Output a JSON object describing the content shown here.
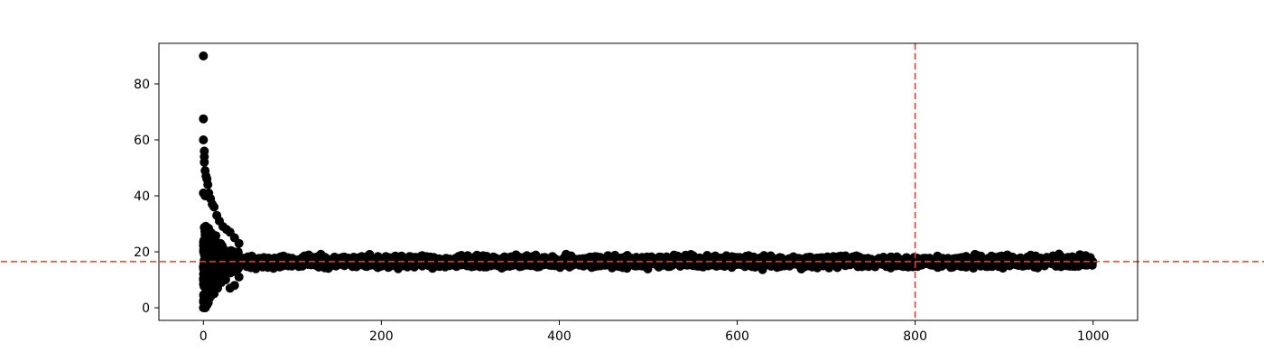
{
  "chart_data": {
    "type": "scatter",
    "title": "",
    "xlabel": "",
    "ylabel": "",
    "xlim": [
      -50,
      1050
    ],
    "ylim": [
      -4.5,
      94.5
    ],
    "xticks": [
      0,
      200,
      400,
      600,
      800,
      1000
    ],
    "yticks": [
      0,
      20,
      40,
      60,
      80
    ],
    "xtick_labels": [
      "0",
      "200",
      "400",
      "600",
      "800",
      "1000"
    ],
    "ytick_labels": [
      "0",
      "20",
      "40",
      "60",
      "80"
    ],
    "grid": false,
    "legend": "none",
    "marker_color": "#000000",
    "reference_line_color": "#e8412c",
    "reference_lines": [
      {
        "orientation": "horizontal",
        "value": 16.5,
        "style": "dashed"
      },
      {
        "orientation": "vertical",
        "value": 800,
        "style": "dashed"
      }
    ],
    "series": [
      {
        "x_range": [
          0,
          1000
        ],
        "description_points": [
          {
            "x": 0,
            "y": 90
          },
          {
            "x": 0,
            "y": 67.5
          },
          {
            "x": 0,
            "y": 60
          },
          {
            "x": 1,
            "y": 56
          },
          {
            "x": 1,
            "y": 54
          },
          {
            "x": 1,
            "y": 52
          },
          {
            "x": 2,
            "y": 49
          },
          {
            "x": 3,
            "y": 47
          },
          {
            "x": 4,
            "y": 46
          },
          {
            "x": 5,
            "y": 44
          },
          {
            "x": 0,
            "y": 41
          },
          {
            "x": 2,
            "y": 40
          },
          {
            "x": 6,
            "y": 41
          },
          {
            "x": 8,
            "y": 39
          },
          {
            "x": 10,
            "y": 37
          },
          {
            "x": 12,
            "y": 36
          },
          {
            "x": 15,
            "y": 33
          },
          {
            "x": 18,
            "y": 31
          },
          {
            "x": 22,
            "y": 29
          },
          {
            "x": 26,
            "y": 28
          },
          {
            "x": 30,
            "y": 27
          },
          {
            "x": 35,
            "y": 25
          },
          {
            "x": 40,
            "y": 23
          },
          {
            "x": 0,
            "y": 0
          },
          {
            "x": 2,
            "y": 0
          },
          {
            "x": 4,
            "y": 1
          },
          {
            "x": 6,
            "y": 3
          },
          {
            "x": 8,
            "y": 4
          },
          {
            "x": 12,
            "y": 5
          },
          {
            "x": 16,
            "y": 7
          },
          {
            "x": 20,
            "y": 9
          },
          {
            "x": 25,
            "y": 10
          },
          {
            "x": 30,
            "y": 7
          },
          {
            "x": 35,
            "y": 8
          },
          {
            "x": 40,
            "y": 11
          }
        ],
        "steady_state": {
          "x_from": 40,
          "x_to": 1000,
          "center": 16.5,
          "spread": 2.5
        }
      }
    ]
  }
}
